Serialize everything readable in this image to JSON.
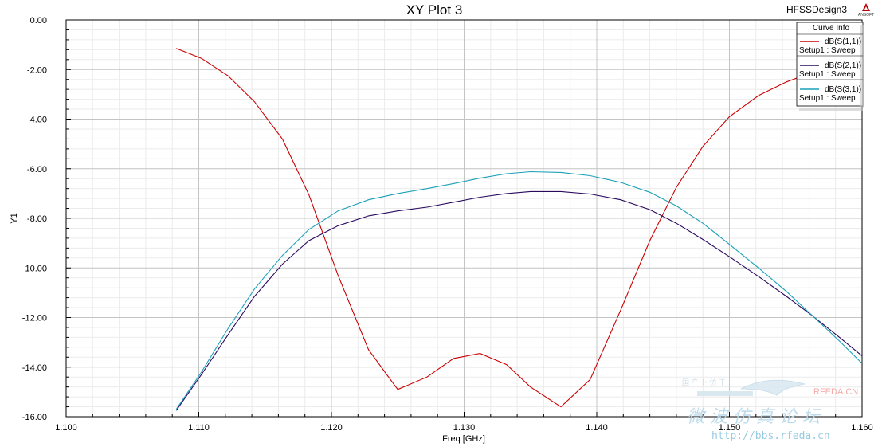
{
  "chart_data": {
    "type": "line",
    "title": "XY Plot 3",
    "design_name": "HFSSDesign3",
    "logo_text": "ANSOFT",
    "xlabel": "Freq [GHz]",
    "ylabel": "Y1",
    "xlim": [
      1.1,
      1.16
    ],
    "ylim": [
      -16,
      0
    ],
    "x_ticks": [
      "1.100",
      "1.110",
      "1.120",
      "1.130",
      "1.140",
      "1.150",
      "1.160"
    ],
    "y_ticks": [
      "0.00",
      "-2.00",
      "-4.00",
      "-6.00",
      "-8.00",
      "-10.00",
      "-12.00",
      "-14.00",
      "-16.00"
    ],
    "grid": true,
    "legend": {
      "title": "Curve Info",
      "placement": "top-right"
    },
    "series": [
      {
        "name": "dB(S(1,1))",
        "setup": "Setup1 : Sweep",
        "color": "#cc0000",
        "x": [
          1.1083,
          1.1102,
          1.1122,
          1.1142,
          1.1163,
          1.1183,
          1.1205,
          1.1228,
          1.125,
          1.1272,
          1.1292,
          1.1312,
          1.1332,
          1.135,
          1.1373,
          1.1395,
          1.1418,
          1.144,
          1.146,
          1.148,
          1.15,
          1.1522,
          1.1543,
          1.1563,
          1.158
        ],
        "y": [
          -1.15,
          -1.55,
          -2.25,
          -3.3,
          -4.8,
          -7.05,
          -10.3,
          -13.3,
          -14.9,
          -14.4,
          -13.65,
          -13.45,
          -13.9,
          -14.8,
          -15.6,
          -14.5,
          -11.7,
          -8.9,
          -6.75,
          -5.1,
          -3.9,
          -3.05,
          -2.5,
          -2.1,
          -1.8
        ]
      },
      {
        "name": "dB(S(2,1))",
        "setup": "Setup1 : Sweep",
        "color": "#2a0a5e",
        "x": [
          1.1083,
          1.1102,
          1.1122,
          1.1142,
          1.1163,
          1.1183,
          1.1205,
          1.1228,
          1.125,
          1.1272,
          1.1292,
          1.1312,
          1.1332,
          1.135,
          1.1373,
          1.1395,
          1.1418,
          1.144,
          1.146,
          1.148,
          1.15,
          1.1522,
          1.1543,
          1.1563,
          1.1583,
          1.16
        ],
        "y": [
          -15.75,
          -14.3,
          -12.7,
          -11.15,
          -9.85,
          -8.9,
          -8.3,
          -7.9,
          -7.7,
          -7.55,
          -7.35,
          -7.15,
          -7.0,
          -6.92,
          -6.92,
          -7.02,
          -7.25,
          -7.65,
          -8.2,
          -8.85,
          -9.55,
          -10.35,
          -11.15,
          -11.95,
          -12.8,
          -13.55
        ]
      },
      {
        "name": "dB(S(3,1))",
        "setup": "Setup1 : Sweep",
        "color": "#1aa0b8",
        "x": [
          1.1083,
          1.1102,
          1.1122,
          1.1142,
          1.1163,
          1.1183,
          1.1205,
          1.1228,
          1.125,
          1.1272,
          1.1292,
          1.1312,
          1.1332,
          1.135,
          1.1373,
          1.1395,
          1.1418,
          1.144,
          1.146,
          1.148,
          1.15,
          1.1522,
          1.1543,
          1.1563,
          1.1583,
          1.16
        ],
        "y": [
          -15.7,
          -14.2,
          -12.45,
          -10.85,
          -9.5,
          -8.45,
          -7.7,
          -7.25,
          -7.0,
          -6.8,
          -6.6,
          -6.38,
          -6.2,
          -6.12,
          -6.15,
          -6.28,
          -6.55,
          -6.95,
          -7.5,
          -8.2,
          -9.05,
          -10.0,
          -10.95,
          -11.95,
          -12.95,
          -13.85
        ]
      }
    ]
  },
  "watermark": {
    "top_text": "国 产 卜 仿 干",
    "brand": "RFEDA.CN",
    "big_text": "微 波 仿 真 论 坛",
    "url": "http://bbs.rfeda.cn"
  }
}
